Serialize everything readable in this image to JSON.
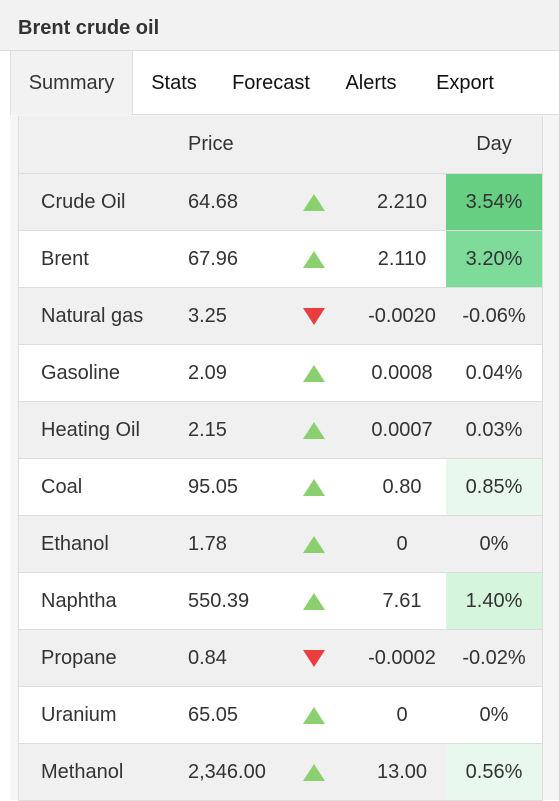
{
  "header": {
    "title": "Brent crude oil"
  },
  "tabs": [
    {
      "label": "Summary",
      "active": true
    },
    {
      "label": "Stats",
      "active": false
    },
    {
      "label": "Forecast",
      "active": false
    },
    {
      "label": "Alerts",
      "active": false
    },
    {
      "label": "Export",
      "active": false
    }
  ],
  "table": {
    "columns": {
      "price": "Price",
      "day": "Day"
    },
    "colors": {
      "up": "#8bd06e",
      "down": "#ea3d3d",
      "day_strong": "#66cf82",
      "day_medium": "#7fdb9a",
      "day_light": "#d5f5dc",
      "day_faint": "#e8f8ec",
      "day_none": "transparent"
    },
    "rows": [
      {
        "name": "Crude Oil",
        "price": "64.68",
        "direction": "up",
        "change": "2.210",
        "day": "3.54%",
        "day_fill": "day_strong"
      },
      {
        "name": "Brent",
        "price": "67.96",
        "direction": "up",
        "change": "2.110",
        "day": "3.20%",
        "day_fill": "day_medium"
      },
      {
        "name": "Natural gas",
        "price": "3.25",
        "direction": "down",
        "change": "-0.0020",
        "day": "-0.06%",
        "day_fill": "day_none"
      },
      {
        "name": "Gasoline",
        "price": "2.09",
        "direction": "up",
        "change": "0.0008",
        "day": "0.04%",
        "day_fill": "day_none"
      },
      {
        "name": "Heating Oil",
        "price": "2.15",
        "direction": "up",
        "change": "0.0007",
        "day": "0.03%",
        "day_fill": "day_none"
      },
      {
        "name": "Coal",
        "price": "95.05",
        "direction": "up",
        "change": "0.80",
        "day": "0.85%",
        "day_fill": "day_faint"
      },
      {
        "name": "Ethanol",
        "price": "1.78",
        "direction": "up",
        "change": "0",
        "day": "0%",
        "day_fill": "day_none"
      },
      {
        "name": "Naphtha",
        "price": "550.39",
        "direction": "up",
        "change": "7.61",
        "day": "1.40%",
        "day_fill": "day_light"
      },
      {
        "name": "Propane",
        "price": "0.84",
        "direction": "down",
        "change": "-0.0002",
        "day": "-0.02%",
        "day_fill": "day_none"
      },
      {
        "name": "Uranium",
        "price": "65.05",
        "direction": "up",
        "change": "0",
        "day": "0%",
        "day_fill": "day_none"
      },
      {
        "name": "Methanol",
        "price": "2,346.00",
        "direction": "up",
        "change": "13.00",
        "day": "0.56%",
        "day_fill": "day_faint"
      }
    ]
  }
}
